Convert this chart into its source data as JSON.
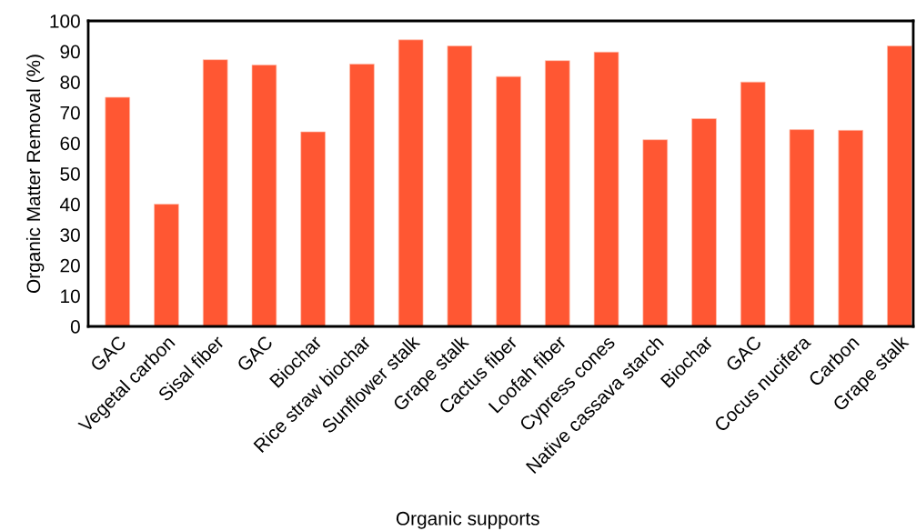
{
  "chart_data": {
    "type": "bar",
    "xlabel": "Organic supports",
    "ylabel": "Organic Matter Removal (%)",
    "categories": [
      "GAC",
      "Vegetal carbon",
      "Sisal fiber",
      "GAC",
      "Biochar",
      "Rice straw biochar",
      "Sunflower stalk",
      "Grape stalk",
      "Cactus fiber",
      "Loofah fiber",
      "Cypress cones",
      "Native cassava starch",
      "Biochar",
      "GAC",
      "Cocus nucifera",
      "Carbon",
      "Grape stalk"
    ],
    "values": [
      75,
      40,
      87.3,
      85.6,
      63.7,
      85.9,
      93.8,
      91.8,
      81.8,
      87,
      89.8,
      61.1,
      68,
      80,
      64.4,
      64.2,
      91.8
    ],
    "color": "#ff5733",
    "ylim": [
      0,
      100
    ],
    "yticks": [
      0,
      10,
      20,
      30,
      40,
      50,
      60,
      70,
      80,
      90,
      100
    ],
    "grid": false
  }
}
